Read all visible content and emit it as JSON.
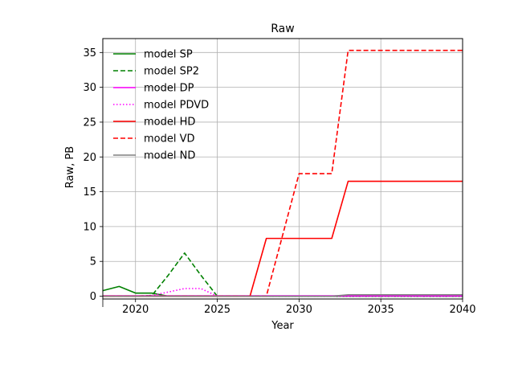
{
  "chart_data": {
    "type": "line",
    "title": "Raw",
    "xlabel": "Year",
    "ylabel": "Raw, PB",
    "xlim": [
      2018,
      2040
    ],
    "ylim": [
      -0.4,
      37
    ],
    "xticks": [
      2020,
      2025,
      2030,
      2035,
      2040
    ],
    "yticks": [
      0,
      5,
      10,
      15,
      20,
      25,
      30,
      35
    ],
    "grid": true,
    "legend_position": "top-left",
    "series": [
      {
        "name": "model SP",
        "color": "#008000",
        "dash": "solid",
        "x": [
          2018,
          2019,
          2020,
          2021,
          2022,
          2023,
          2024,
          2025,
          2026,
          2027,
          2028,
          2029,
          2030,
          2031,
          2032,
          2033,
          2034,
          2035,
          2036,
          2037,
          2038,
          2039,
          2040
        ],
        "y": [
          0.8,
          1.4,
          0.45,
          0.45,
          0,
          0,
          0,
          0,
          0,
          0,
          0,
          0,
          0,
          0,
          0,
          0,
          0,
          0,
          0,
          0,
          0,
          0,
          0
        ]
      },
      {
        "name": "model SP2",
        "color": "#008000",
        "dash": "dashed",
        "x": [
          2018,
          2019,
          2020,
          2021,
          2022,
          2023,
          2024,
          2025,
          2026,
          2027,
          2028,
          2029,
          2030,
          2031,
          2032,
          2033,
          2034,
          2035,
          2036,
          2037,
          2038,
          2039,
          2040
        ],
        "y": [
          0,
          0,
          0,
          0.1,
          3.0,
          6.2,
          3.0,
          0,
          0,
          0,
          0,
          0,
          0,
          0,
          0,
          0,
          0,
          0,
          0,
          0,
          0,
          0,
          0
        ]
      },
      {
        "name": "model DP",
        "color": "#ff00ff",
        "dash": "solid",
        "x": [
          2018,
          2019,
          2020,
          2021,
          2022,
          2023,
          2024,
          2025,
          2026,
          2027,
          2028,
          2029,
          2030,
          2031,
          2032,
          2033,
          2034,
          2035,
          2036,
          2037,
          2038,
          2039,
          2040
        ],
        "y": [
          0.05,
          0.05,
          0.05,
          0.05,
          0.05,
          0.05,
          0.05,
          0.05,
          0.05,
          0.05,
          0.05,
          0.05,
          0.05,
          0.05,
          0.05,
          0.05,
          0.05,
          0.05,
          0.05,
          0.05,
          0.05,
          0.05,
          0.05
        ]
      },
      {
        "name": "model PDVD",
        "color": "#ff00ff",
        "dash": "dotted",
        "x": [
          2018,
          2019,
          2020,
          2021,
          2022,
          2023,
          2024,
          2025,
          2026,
          2027,
          2028,
          2029,
          2030,
          2031,
          2032,
          2033,
          2034,
          2035,
          2036,
          2037,
          2038,
          2039,
          2040
        ],
        "y": [
          0,
          0,
          0,
          0.1,
          0.6,
          1.1,
          1.1,
          0,
          0,
          0,
          0,
          0,
          0,
          0,
          0,
          0,
          0,
          0,
          0,
          0,
          0,
          0,
          0
        ]
      },
      {
        "name": "model HD",
        "color": "#ff0000",
        "dash": "solid",
        "x": [
          2018,
          2019,
          2020,
          2021,
          2022,
          2023,
          2024,
          2025,
          2026,
          2027,
          2028,
          2029,
          2030,
          2031,
          2032,
          2033,
          2034,
          2035,
          2036,
          2037,
          2038,
          2039,
          2040
        ],
        "y": [
          0,
          0,
          0,
          0,
          0,
          0,
          0,
          0,
          0,
          0,
          8.3,
          8.3,
          8.3,
          8.3,
          8.3,
          16.5,
          16.5,
          16.5,
          16.5,
          16.5,
          16.5,
          16.5,
          16.5
        ]
      },
      {
        "name": "model VD",
        "color": "#ff0000",
        "dash": "dashed",
        "x": [
          2018,
          2019,
          2020,
          2021,
          2022,
          2023,
          2024,
          2025,
          2026,
          2027,
          2028,
          2029,
          2030,
          2031,
          2032,
          2033,
          2034,
          2035,
          2036,
          2037,
          2038,
          2039,
          2040
        ],
        "y": [
          0,
          0,
          0,
          0,
          0,
          0,
          0,
          0,
          0,
          0,
          0,
          8.8,
          17.6,
          17.6,
          17.6,
          35.3,
          35.3,
          35.3,
          35.3,
          35.3,
          35.3,
          35.3,
          35.3
        ]
      },
      {
        "name": "model ND",
        "color": "#808080",
        "dash": "solid",
        "x": [
          2018,
          2019,
          2020,
          2021,
          2022,
          2023,
          2024,
          2025,
          2026,
          2027,
          2028,
          2029,
          2030,
          2031,
          2032,
          2033,
          2034,
          2035,
          2036,
          2037,
          2038,
          2039,
          2040
        ],
        "y": [
          0,
          0,
          0,
          0,
          0,
          0,
          0,
          0,
          0,
          0,
          0,
          0,
          0,
          0,
          0,
          0.2,
          0.2,
          0.2,
          0.2,
          0.2,
          0.2,
          0.2,
          0.2
        ]
      }
    ]
  }
}
